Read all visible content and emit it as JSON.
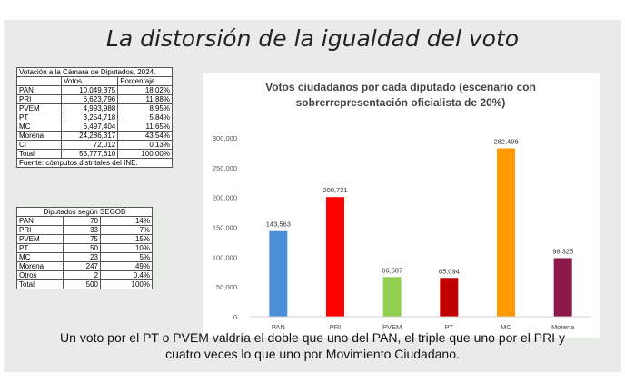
{
  "title": "La distorsión de la igualdad del voto",
  "votes_table": {
    "caption": "Votación a la Cámara de Diputados, 2024.",
    "headers": [
      "",
      "Votos",
      "Porcentaje"
    ],
    "rows": [
      [
        "PAN",
        "10,049,375",
        "18.02%"
      ],
      [
        "PRI",
        "6,623,796",
        "11.88%"
      ],
      [
        "PVEM",
        "4,993,988",
        "8.95%"
      ],
      [
        "PT",
        "3,254,718",
        "5.84%"
      ],
      [
        "MC",
        "6,497,404",
        "11.65%"
      ],
      [
        "Morena",
        "24,286,317",
        "43.54%"
      ],
      [
        "CI",
        "72,012",
        "0.13%"
      ],
      [
        "Total",
        "55,777,610",
        "100.00%"
      ]
    ],
    "source": "Fuente: cómputos distritales del INE."
  },
  "seats_table": {
    "caption": "Diputados según SEGOB",
    "rows": [
      [
        "PAN",
        "70",
        "14%"
      ],
      [
        "PRI",
        "33",
        "7%"
      ],
      [
        "PVEM",
        "75",
        "15%"
      ],
      [
        "PT",
        "50",
        "10%"
      ],
      [
        "MC",
        "23",
        "5%"
      ],
      [
        "Morena",
        "247",
        "49%"
      ],
      [
        "Otros",
        "2",
        "0.4%"
      ],
      [
        "Total",
        "500",
        "100%"
      ]
    ]
  },
  "chart_data": {
    "type": "bar",
    "title": "Votos ciudadanos por cada diputado (escenario con sobrerrepresentación oficialista de 20%)",
    "title_lines": [
      "Votos ciudadanos por cada diputado (escenario con",
      "sobrerrepresentación oficialista de 20%)"
    ],
    "categories": [
      "PAN",
      "PRI",
      "PVEM",
      "PT",
      "MC",
      "Morena"
    ],
    "values": [
      143563,
      200721,
      66587,
      65094,
      282496,
      98325
    ],
    "value_labels": [
      "143,563",
      "200,721",
      "66,587",
      "65,094",
      "282,496",
      "98,325"
    ],
    "colors": [
      "#4a90d9",
      "#ff0000",
      "#92d050",
      "#c00000",
      "#ff9900",
      "#8b1a4a"
    ],
    "yticks": [
      0,
      50000,
      100000,
      150000,
      200000,
      250000,
      300000
    ],
    "ytick_labels": [
      "0",
      "50,000",
      "100,000",
      "150,000",
      "200,000",
      "250,000",
      "300,000"
    ],
    "ylim": [
      0,
      300000
    ],
    "xlabel": "",
    "ylabel": "",
    "grid": false
  },
  "footer_lines": [
    "Un voto por el PT o PVEM valdría el doble que uno del PAN, el triple que uno por el PRI y",
    "cuatro veces lo que uno por Movimiento Ciudadano."
  ]
}
